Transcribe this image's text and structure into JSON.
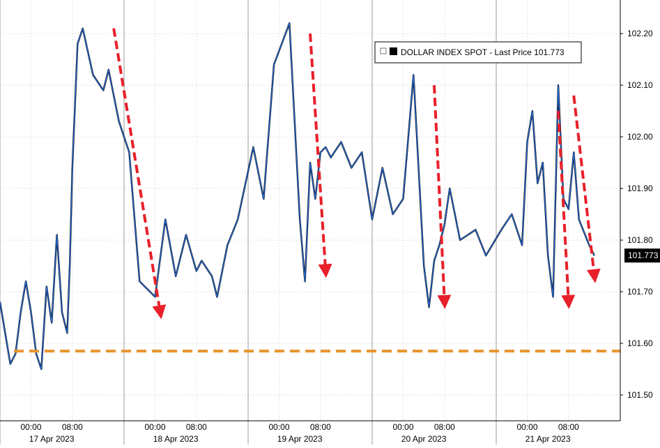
{
  "chart_data": {
    "type": "line",
    "title": "",
    "xlabel": "",
    "ylabel": "",
    "ylim": [
      101.45,
      102.265
    ],
    "y_ticks": [
      "101.50",
      "101.60",
      "101.70",
      "101.80",
      "101.90",
      "102.00",
      "102.10",
      "102.20"
    ],
    "x_time_ticks": [
      "00:00",
      "08:00",
      "00:00",
      "08:00",
      "00:00",
      "08:00",
      "00:00",
      "08:00",
      "00:00",
      "08:00"
    ],
    "x_date_labels": [
      "17 Apr 2023",
      "18 Apr 2023",
      "19 Apr 2023",
      "20 Apr 2023",
      "21 Apr 2023"
    ],
    "legend": {
      "text": "DOLLAR INDEX SPOT - Last Price 101.773",
      "placement": "top-right"
    },
    "last_price_label": "101.773",
    "grid": true,
    "colors": {
      "series": "#2a6fdb",
      "series_shadow": "#000000",
      "arrows": "#e8202a",
      "support_line": "#e8952e"
    },
    "support_level": 101.585,
    "series": [
      {
        "name": "DOLLAR INDEX SPOT",
        "x": [
          "2023-04-16 18:00",
          "2023-04-16 20:00",
          "2023-04-16 21:00",
          "2023-04-16 22:00",
          "2023-04-16 23:00",
          "2023-04-17 00:00",
          "2023-04-17 01:00",
          "2023-04-17 02:00",
          "2023-04-17 03:00",
          "2023-04-17 04:00",
          "2023-04-17 05:00",
          "2023-04-17 06:00",
          "2023-04-17 07:00",
          "2023-04-17 07:30",
          "2023-04-17 08:00",
          "2023-04-17 09:00",
          "2023-04-17 10:00",
          "2023-04-17 12:00",
          "2023-04-17 14:00",
          "2023-04-17 15:00",
          "2023-04-17 17:00",
          "2023-04-17 19:00",
          "2023-04-17 21:00",
          "2023-04-18 00:00",
          "2023-04-18 02:00",
          "2023-04-18 04:00",
          "2023-04-18 06:00",
          "2023-04-18 08:00",
          "2023-04-18 09:00",
          "2023-04-18 11:00",
          "2023-04-18 12:00",
          "2023-04-18 14:00",
          "2023-04-18 16:00",
          "2023-04-18 19:00",
          "2023-04-18 21:00",
          "2023-04-18 23:00",
          "2023-04-19 02:00",
          "2023-04-19 04:00",
          "2023-04-19 05:00",
          "2023-04-19 06:00",
          "2023-04-19 07:00",
          "2023-04-19 08:00",
          "2023-04-19 09:00",
          "2023-04-19 10:00",
          "2023-04-19 12:00",
          "2023-04-19 14:00",
          "2023-04-19 16:00",
          "2023-04-19 18:00",
          "2023-04-19 20:00",
          "2023-04-19 22:00",
          "2023-04-20 00:00",
          "2023-04-20 02:00",
          "2023-04-20 04:00",
          "2023-04-20 05:00",
          "2023-04-20 06:00",
          "2023-04-20 07:00",
          "2023-04-20 08:00",
          "2023-04-20 09:00",
          "2023-04-20 11:00",
          "2023-04-20 14:00",
          "2023-04-20 16:00",
          "2023-04-20 19:00",
          "2023-04-20 21:00",
          "2023-04-20 23:00",
          "2023-04-21 00:00",
          "2023-04-21 01:00",
          "2023-04-21 02:00",
          "2023-04-21 03:00",
          "2023-04-21 04:00",
          "2023-04-21 05:00",
          "2023-04-21 06:00",
          "2023-04-21 07:00",
          "2023-04-21 08:00",
          "2023-04-21 09:00",
          "2023-04-21 10:00",
          "2023-04-21 12:00",
          "2023-04-21 13:00"
        ],
        "y": [
          101.68,
          101.56,
          101.58,
          101.66,
          101.72,
          101.66,
          101.58,
          101.55,
          101.71,
          101.64,
          101.81,
          101.66,
          101.62,
          101.75,
          101.94,
          102.18,
          102.21,
          102.12,
          102.09,
          102.13,
          102.03,
          101.97,
          101.72,
          101.69,
          101.84,
          101.73,
          101.81,
          101.74,
          101.76,
          101.73,
          101.69,
          101.79,
          101.84,
          101.98,
          101.88,
          102.14,
          102.22,
          101.84,
          101.72,
          101.95,
          101.88,
          101.97,
          101.98,
          101.96,
          101.99,
          101.94,
          101.97,
          101.84,
          101.94,
          101.85,
          101.88,
          102.12,
          101.75,
          101.67,
          101.76,
          101.79,
          101.83,
          101.9,
          101.8,
          101.82,
          101.77,
          101.82,
          101.85,
          101.79,
          101.99,
          102.05,
          101.91,
          101.95,
          101.77,
          101.69,
          102.1,
          101.88,
          101.86,
          101.97,
          101.84,
          101.79,
          101.77
        ]
      }
    ]
  }
}
